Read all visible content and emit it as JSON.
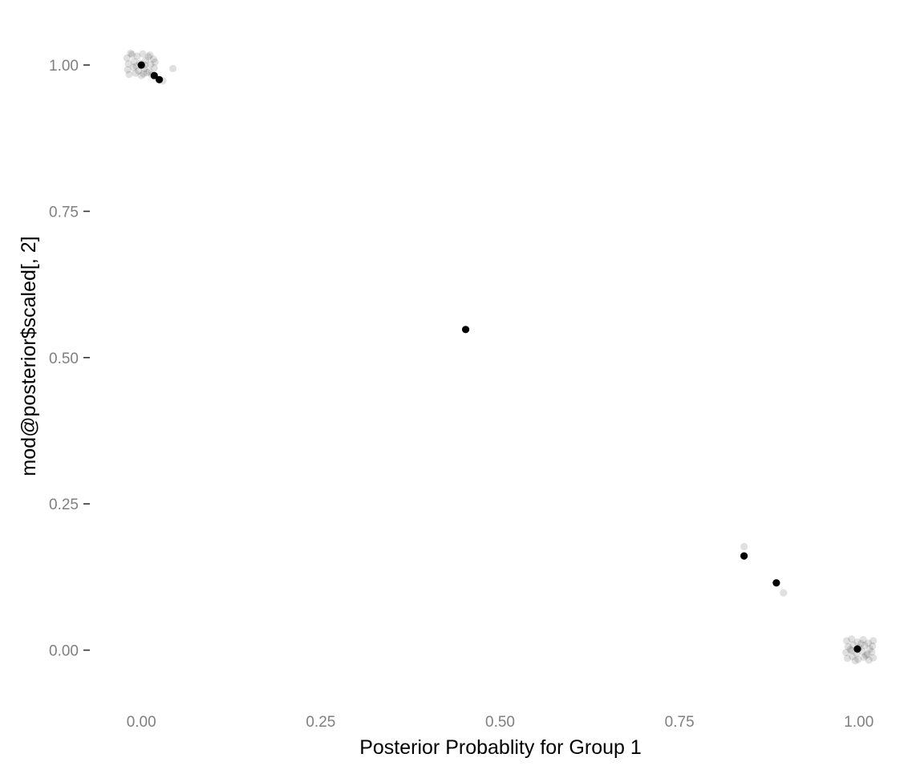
{
  "chart_data": {
    "type": "scatter",
    "title": "",
    "xlabel": "Posterior Probablity for Group 1",
    "ylabel": "mod@posterior$scaled[, 2]",
    "xlim": [
      -0.055,
      1.055
    ],
    "ylim": [
      -0.065,
      1.07
    ],
    "x_ticks": [
      0.0,
      0.25,
      0.5,
      0.75,
      1.0
    ],
    "x_tick_labels": [
      "0.00",
      "0.25",
      "0.50",
      "0.75",
      "1.00"
    ],
    "y_ticks": [
      0.0,
      0.25,
      0.5,
      0.75,
      1.0
    ],
    "y_tick_labels": [
      "0.00",
      "0.25",
      "0.50",
      "0.75",
      "1.00"
    ],
    "grid": false,
    "point_color": "#000000",
    "series": [
      {
        "opacity": 0.12,
        "points": [
          [
            -0.02,
            1.012
          ],
          [
            -0.013,
            1.018
          ],
          [
            -0.006,
            1.015
          ],
          [
            0.002,
            1.019
          ],
          [
            0.01,
            1.014
          ],
          [
            0.017,
            1.01
          ],
          [
            -0.018,
            1.002
          ],
          [
            -0.01,
            1.006
          ],
          [
            -0.002,
            1.003
          ],
          [
            0.006,
            1.008
          ],
          [
            0.013,
            1.001
          ],
          [
            0.019,
            1.005
          ],
          [
            -0.019,
            0.992
          ],
          [
            -0.011,
            0.996
          ],
          [
            -0.004,
            0.99
          ],
          [
            0.004,
            0.994
          ],
          [
            0.011,
            0.989
          ],
          [
            0.018,
            0.995
          ],
          [
            -0.017,
            0.984
          ],
          [
            -0.008,
            0.986
          ],
          [
            0.0,
            0.982
          ],
          [
            0.008,
            0.987
          ],
          [
            0.015,
            0.983
          ],
          [
            -0.015,
            1.02
          ],
          [
            0.005,
            1.0
          ],
          [
            -0.007,
            0.998
          ],
          [
            0.012,
            1.017
          ],
          [
            0.003,
            0.985
          ],
          [
            0.044,
            0.994
          ],
          [
            0.03,
            0.973
          ],
          [
            0.84,
            0.177
          ],
          [
            0.895,
            0.098
          ],
          [
            0.983,
            0.016
          ],
          [
            0.99,
            0.019
          ],
          [
            0.998,
            0.014
          ],
          [
            1.006,
            0.018
          ],
          [
            1.013,
            0.012
          ],
          [
            1.02,
            0.016
          ],
          [
            0.985,
            0.006
          ],
          [
            0.992,
            0.009
          ],
          [
            1.0,
            0.004
          ],
          [
            1.008,
            0.008
          ],
          [
            1.015,
            0.002
          ],
          [
            1.019,
            0.007
          ],
          [
            0.982,
            -0.004
          ],
          [
            0.99,
            -0.001
          ],
          [
            0.997,
            -0.006
          ],
          [
            1.005,
            -0.002
          ],
          [
            1.012,
            -0.007
          ],
          [
            1.018,
            -0.003
          ],
          [
            0.984,
            -0.014
          ],
          [
            0.991,
            -0.011
          ],
          [
            0.999,
            -0.016
          ],
          [
            1.007,
            -0.012
          ],
          [
            1.014,
            -0.017
          ],
          [
            1.02,
            -0.013
          ],
          [
            0.988,
            0.001
          ],
          [
            1.003,
            0.011
          ],
          [
            0.995,
            -0.018
          ],
          [
            1.01,
            -0.009
          ]
        ]
      },
      {
        "opacity": 1.0,
        "points": [
          [
            0.0,
            1.0
          ],
          [
            0.018,
            0.982
          ],
          [
            0.025,
            0.975
          ],
          [
            0.452,
            0.548
          ],
          [
            0.84,
            0.161
          ],
          [
            0.885,
            0.115
          ],
          [
            0.998,
            0.002
          ]
        ]
      }
    ]
  }
}
